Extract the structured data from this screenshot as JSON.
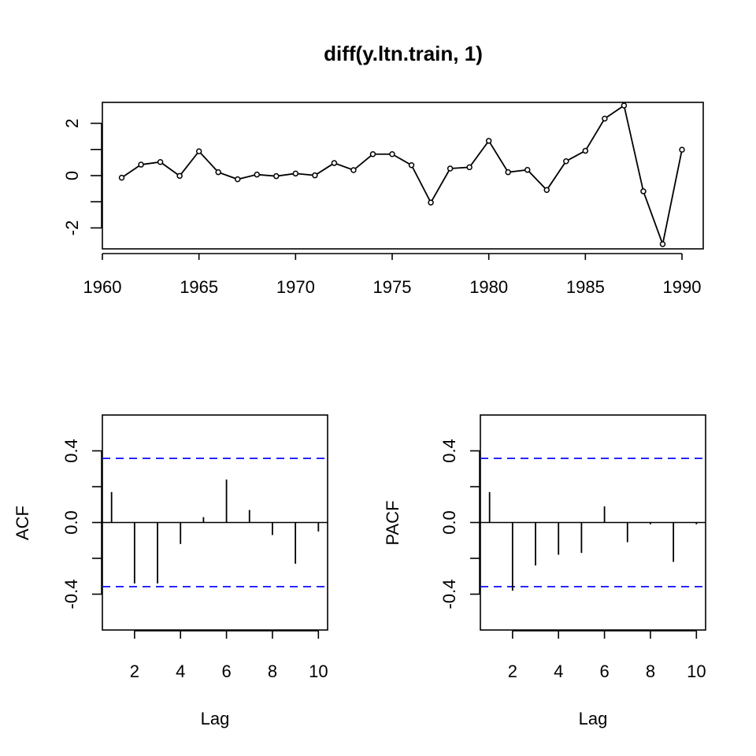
{
  "chart_data": [
    {
      "type": "line",
      "title": "diff(y.ltn.train, 1)",
      "xlabel": "",
      "ylabel": "",
      "x": [
        1961,
        1962,
        1963,
        1964,
        1965,
        1966,
        1967,
        1968,
        1969,
        1970,
        1971,
        1972,
        1973,
        1974,
        1975,
        1976,
        1977,
        1978,
        1979,
        1980,
        1981,
        1982,
        1983,
        1984,
        1985,
        1986,
        1987,
        1988,
        1989,
        1990
      ],
      "values": [
        -0.08,
        0.42,
        0.52,
        -0.01,
        0.93,
        0.13,
        -0.14,
        0.04,
        -0.02,
        0.08,
        0.01,
        0.48,
        0.21,
        0.82,
        0.82,
        0.4,
        -1.03,
        0.27,
        0.32,
        1.33,
        0.13,
        0.22,
        -0.55,
        0.55,
        0.95,
        2.18,
        2.68,
        -0.6,
        -2.62,
        0.99
      ],
      "xlim": [
        1960,
        1991.1
      ],
      "ylim": [
        -2.8,
        2.8
      ],
      "x_ticks": [
        "1960",
        "1965",
        "1970",
        "1975",
        "1980",
        "1985",
        "1990"
      ],
      "y_ticks": [
        "-2",
        "0",
        "2"
      ],
      "markers": "open-circle",
      "grid": false
    },
    {
      "type": "bar",
      "title": "",
      "xlabel": "Lag",
      "ylabel": "ACF",
      "lags": [
        1,
        2,
        3,
        4,
        5,
        6,
        7,
        8,
        9,
        10
      ],
      "values": [
        0.17,
        -0.34,
        -0.34,
        -0.12,
        0.03,
        0.24,
        0.07,
        -0.07,
        -0.23,
        -0.05
      ],
      "confidence_bound": 0.358,
      "ylim": [
        -0.6,
        0.6
      ],
      "xlim": [
        0.6,
        10.4
      ],
      "x_ticks": [
        "2",
        "4",
        "6",
        "8",
        "10"
      ],
      "y_ticks": [
        "-0.4",
        "0.0",
        "0.4"
      ],
      "ci_color": "#1a1aff",
      "grid": false
    },
    {
      "type": "bar",
      "title": "",
      "xlabel": "Lag",
      "ylabel": "PACF",
      "lags": [
        1,
        2,
        3,
        4,
        5,
        6,
        7,
        8,
        9,
        10
      ],
      "values": [
        0.17,
        -0.38,
        -0.24,
        -0.18,
        -0.17,
        0.09,
        -0.11,
        -0.01,
        -0.22,
        -0.01
      ],
      "confidence_bound": 0.358,
      "ylim": [
        -0.6,
        0.6
      ],
      "xlim": [
        0.6,
        10.4
      ],
      "x_ticks": [
        "2",
        "4",
        "6",
        "8",
        "10"
      ],
      "y_ticks": [
        "-0.4",
        "0.0",
        "0.4"
      ],
      "ci_color": "#1a1aff",
      "grid": false
    }
  ]
}
